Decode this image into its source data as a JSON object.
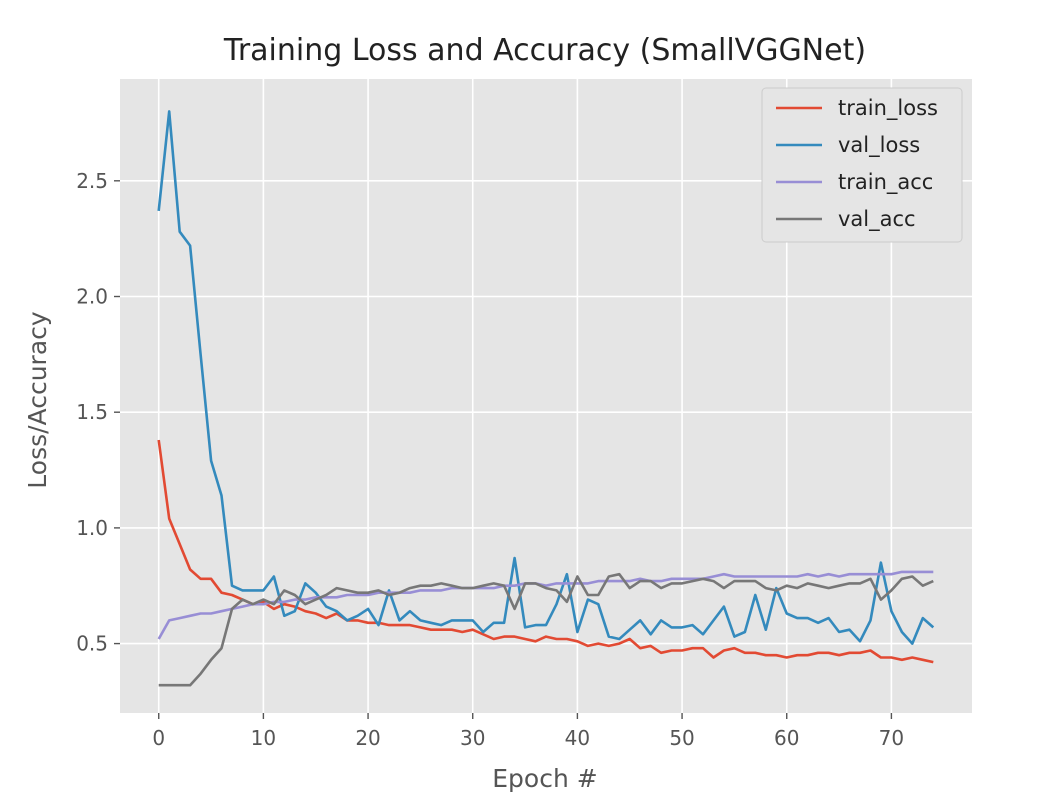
{
  "chart_data": {
    "type": "line",
    "title": "Training Loss and Accuracy (SmallVGGNet)",
    "xlabel": "Epoch #",
    "ylabel": "Loss/Accuracy",
    "xlim": [
      -3.7,
      77.7
    ],
    "ylim": [
      0.2,
      2.94
    ],
    "xticks": [
      0,
      10,
      20,
      30,
      40,
      50,
      60,
      70
    ],
    "yticks": [
      0.5,
      1.0,
      1.5,
      2.0,
      2.5
    ],
    "xtick_labels": [
      "0",
      "10",
      "20",
      "30",
      "40",
      "50",
      "60",
      "70"
    ],
    "ytick_labels": [
      "0.5",
      "1.0",
      "1.5",
      "2.0",
      "2.5"
    ],
    "grid": true,
    "legend_position": "top-right",
    "x": [
      0,
      1,
      2,
      3,
      4,
      5,
      6,
      7,
      8,
      9,
      10,
      11,
      12,
      13,
      14,
      15,
      16,
      17,
      18,
      19,
      20,
      21,
      22,
      23,
      24,
      25,
      26,
      27,
      28,
      29,
      30,
      31,
      32,
      33,
      34,
      35,
      36,
      37,
      38,
      39,
      40,
      41,
      42,
      43,
      44,
      45,
      46,
      47,
      48,
      49,
      50,
      51,
      52,
      53,
      54,
      55,
      56,
      57,
      58,
      59,
      60,
      61,
      62,
      63,
      64,
      65,
      66,
      67,
      68,
      69,
      70,
      71,
      72,
      73,
      74
    ],
    "series": [
      {
        "name": "train_loss",
        "color": "#e24a33",
        "values": [
          1.38,
          1.04,
          0.93,
          0.82,
          0.78,
          0.78,
          0.72,
          0.71,
          0.69,
          0.67,
          0.68,
          0.65,
          0.67,
          0.66,
          0.64,
          0.63,
          0.61,
          0.63,
          0.6,
          0.6,
          0.59,
          0.59,
          0.58,
          0.58,
          0.58,
          0.57,
          0.56,
          0.56,
          0.56,
          0.55,
          0.56,
          0.54,
          0.52,
          0.53,
          0.53,
          0.52,
          0.51,
          0.53,
          0.52,
          0.52,
          0.51,
          0.49,
          0.5,
          0.49,
          0.5,
          0.52,
          0.48,
          0.49,
          0.46,
          0.47,
          0.47,
          0.48,
          0.48,
          0.44,
          0.47,
          0.48,
          0.46,
          0.46,
          0.45,
          0.45,
          0.44,
          0.45,
          0.45,
          0.46,
          0.46,
          0.45,
          0.46,
          0.46,
          0.47,
          0.44,
          0.44,
          0.43,
          0.44,
          0.43,
          0.42
        ]
      },
      {
        "name": "val_loss",
        "color": "#348abd",
        "values": [
          2.37,
          2.8,
          2.28,
          2.22,
          1.75,
          1.29,
          1.14,
          0.75,
          0.73,
          0.73,
          0.73,
          0.79,
          0.62,
          0.64,
          0.76,
          0.72,
          0.66,
          0.64,
          0.6,
          0.62,
          0.65,
          0.58,
          0.73,
          0.6,
          0.64,
          0.6,
          0.59,
          0.58,
          0.6,
          0.6,
          0.6,
          0.55,
          0.59,
          0.59,
          0.87,
          0.57,
          0.58,
          0.58,
          0.67,
          0.8,
          0.55,
          0.69,
          0.67,
          0.53,
          0.52,
          0.56,
          0.6,
          0.54,
          0.6,
          0.57,
          0.57,
          0.58,
          0.54,
          0.6,
          0.66,
          0.53,
          0.55,
          0.71,
          0.56,
          0.74,
          0.63,
          0.61,
          0.61,
          0.59,
          0.61,
          0.55,
          0.56,
          0.51,
          0.6,
          0.85,
          0.64,
          0.55,
          0.5,
          0.61,
          0.57
        ]
      },
      {
        "name": "train_acc",
        "color": "#988ed5",
        "values": [
          0.52,
          0.6,
          0.61,
          0.62,
          0.63,
          0.63,
          0.64,
          0.65,
          0.66,
          0.67,
          0.67,
          0.68,
          0.68,
          0.69,
          0.69,
          0.7,
          0.7,
          0.7,
          0.71,
          0.71,
          0.71,
          0.72,
          0.72,
          0.72,
          0.72,
          0.73,
          0.73,
          0.73,
          0.74,
          0.74,
          0.74,
          0.74,
          0.74,
          0.75,
          0.75,
          0.76,
          0.76,
          0.75,
          0.76,
          0.76,
          0.76,
          0.76,
          0.77,
          0.77,
          0.77,
          0.77,
          0.78,
          0.77,
          0.77,
          0.78,
          0.78,
          0.78,
          0.78,
          0.79,
          0.8,
          0.79,
          0.79,
          0.79,
          0.79,
          0.79,
          0.79,
          0.79,
          0.8,
          0.79,
          0.8,
          0.79,
          0.8,
          0.8,
          0.8,
          0.8,
          0.8,
          0.81,
          0.81,
          0.81,
          0.81
        ]
      },
      {
        "name": "val_acc",
        "color": "#777777",
        "values": [
          0.32,
          0.32,
          0.32,
          0.32,
          0.37,
          0.43,
          0.48,
          0.65,
          0.69,
          0.67,
          0.69,
          0.67,
          0.73,
          0.71,
          0.67,
          0.69,
          0.71,
          0.74,
          0.73,
          0.72,
          0.72,
          0.73,
          0.71,
          0.72,
          0.74,
          0.75,
          0.75,
          0.76,
          0.75,
          0.74,
          0.74,
          0.75,
          0.76,
          0.75,
          0.65,
          0.76,
          0.76,
          0.74,
          0.73,
          0.68,
          0.79,
          0.71,
          0.71,
          0.79,
          0.8,
          0.74,
          0.77,
          0.77,
          0.74,
          0.76,
          0.76,
          0.77,
          0.78,
          0.77,
          0.74,
          0.77,
          0.77,
          0.77,
          0.74,
          0.73,
          0.75,
          0.74,
          0.76,
          0.75,
          0.74,
          0.75,
          0.76,
          0.76,
          0.78,
          0.69,
          0.73,
          0.78,
          0.79,
          0.75,
          0.77
        ]
      }
    ]
  }
}
